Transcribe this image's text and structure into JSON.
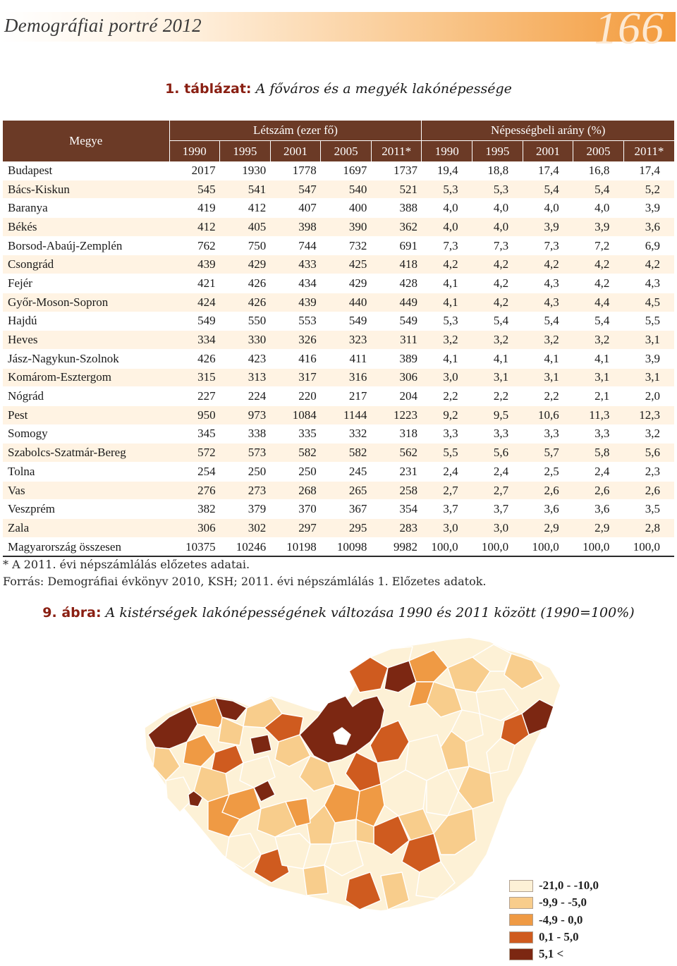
{
  "header": {
    "title": "Demográfiai portré 2012",
    "page_number": "166"
  },
  "table_caption": {
    "number": "1. táblázat:",
    "title": "A főváros és a megyék lakónépessége"
  },
  "table": {
    "megye_header": "Megye",
    "group1": "Létszám (ezer fő)",
    "group2": "Népességbeli arány (%)",
    "years": [
      "1990",
      "1995",
      "2001",
      "2005",
      "2011*",
      "1990",
      "1995",
      "2001",
      "2005",
      "2011*"
    ],
    "rows": [
      {
        "name": "Budapest",
        "values": [
          "2017",
          "1930",
          "1778",
          "1697",
          "1737",
          "19,4",
          "18,8",
          "17,4",
          "16,8",
          "17,4"
        ]
      },
      {
        "name": "Bács-Kiskun",
        "values": [
          "545",
          "541",
          "547",
          "540",
          "521",
          "5,3",
          "5,3",
          "5,4",
          "5,4",
          "5,2"
        ]
      },
      {
        "name": "Baranya",
        "values": [
          "419",
          "412",
          "407",
          "400",
          "388",
          "4,0",
          "4,0",
          "4,0",
          "4,0",
          "3,9"
        ]
      },
      {
        "name": "Békés",
        "values": [
          "412",
          "405",
          "398",
          "390",
          "362",
          "4,0",
          "4,0",
          "3,9",
          "3,9",
          "3,6"
        ]
      },
      {
        "name": "Borsod-Abaúj-Zemplén",
        "values": [
          "762",
          "750",
          "744",
          "732",
          "691",
          "7,3",
          "7,3",
          "7,3",
          "7,2",
          "6,9"
        ]
      },
      {
        "name": "Csongrád",
        "values": [
          "439",
          "429",
          "433",
          "425",
          "418",
          "4,2",
          "4,2",
          "4,2",
          "4,2",
          "4,2"
        ]
      },
      {
        "name": "Fejér",
        "values": [
          "421",
          "426",
          "434",
          "429",
          "428",
          "4,1",
          "4,2",
          "4,3",
          "4,2",
          "4,3"
        ]
      },
      {
        "name": "Győr-Moson-Sopron",
        "values": [
          "424",
          "426",
          "439",
          "440",
          "449",
          "4,1",
          "4,2",
          "4,3",
          "4,4",
          "4,5"
        ]
      },
      {
        "name": "Hajdú",
        "values": [
          "549",
          "550",
          "553",
          "549",
          "549",
          "5,3",
          "5,4",
          "5,4",
          "5,4",
          "5,5"
        ]
      },
      {
        "name": "Heves",
        "values": [
          "334",
          "330",
          "326",
          "323",
          "311",
          "3,2",
          "3,2",
          "3,2",
          "3,2",
          "3,1"
        ]
      },
      {
        "name": "Jász-Nagykun-Szolnok",
        "values": [
          "426",
          "423",
          "416",
          "411",
          "389",
          "4,1",
          "4,1",
          "4,1",
          "4,1",
          "3,9"
        ]
      },
      {
        "name": "Komárom-Esztergom",
        "values": [
          "315",
          "313",
          "317",
          "316",
          "306",
          "3,0",
          "3,1",
          "3,1",
          "3,1",
          "3,1"
        ]
      },
      {
        "name": "Nógrád",
        "values": [
          "227",
          "224",
          "220",
          "217",
          "204",
          "2,2",
          "2,2",
          "2,2",
          "2,1",
          "2,0"
        ]
      },
      {
        "name": "Pest",
        "values": [
          "950",
          "973",
          "1084",
          "1144",
          "1223",
          "9,2",
          "9,5",
          "10,6",
          "11,3",
          "12,3"
        ]
      },
      {
        "name": "Somogy",
        "values": [
          "345",
          "338",
          "335",
          "332",
          "318",
          "3,3",
          "3,3",
          "3,3",
          "3,3",
          "3,2"
        ]
      },
      {
        "name": "Szabolcs-Szatmár-Bereg",
        "values": [
          "572",
          "573",
          "582",
          "582",
          "562",
          "5,5",
          "5,6",
          "5,7",
          "5,8",
          "5,6"
        ]
      },
      {
        "name": "Tolna",
        "values": [
          "254",
          "250",
          "250",
          "245",
          "231",
          "2,4",
          "2,4",
          "2,5",
          "2,4",
          "2,3"
        ]
      },
      {
        "name": "Vas",
        "values": [
          "276",
          "273",
          "268",
          "265",
          "258",
          "2,7",
          "2,7",
          "2,6",
          "2,6",
          "2,6"
        ]
      },
      {
        "name": "Veszprém",
        "values": [
          "382",
          "379",
          "370",
          "367",
          "354",
          "3,7",
          "3,7",
          "3,6",
          "3,6",
          "3,5"
        ]
      },
      {
        "name": "Zala",
        "values": [
          "306",
          "302",
          "297",
          "295",
          "283",
          "3,0",
          "3,0",
          "2,9",
          "2,9",
          "2,8"
        ]
      },
      {
        "name": "Magyarország összesen",
        "values": [
          "10375",
          "10246",
          "10198",
          "10098",
          "9982",
          "100,0",
          "100,0",
          "100,0",
          "100,0",
          "100,0"
        ]
      }
    ]
  },
  "notes": {
    "footnote": "* A 2011. évi népszámlálás előzetes adatai.",
    "source": "Forrás: Demográfiai évkönyv 2010, KSH; 2011. évi népszámlálás 1. Előzetes adatok."
  },
  "figure_caption": {
    "number": "9. ábra:",
    "title": "A kistérségek lakónépességének változása 1990 és 2011 között (1990=100%)"
  },
  "legend": [
    {
      "label": "-21,0 - -10,0",
      "color": "#fdf1d6"
    },
    {
      "label": "-9,9 - -5,0",
      "color": "#f8cd8c"
    },
    {
      "label": "-4,9 - 0,0",
      "color": "#ef9a44"
    },
    {
      "label": "0,1 - 5,0",
      "color": "#cf5b1f"
    },
    {
      "label": "5,1 <",
      "color": "#7c2712"
    }
  ]
}
